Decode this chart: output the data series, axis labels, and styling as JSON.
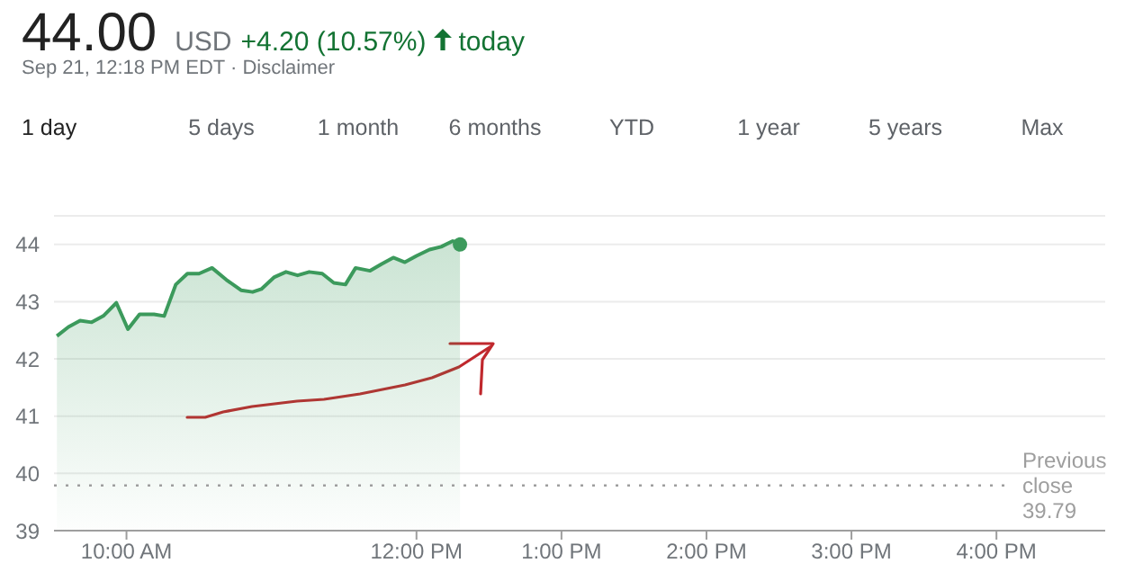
{
  "chart_data": {
    "type": "area",
    "title": "44.00",
    "subtitle": "Sep 21, 12:18 PM EDT · Disclaimer",
    "annotations": [
      "USD",
      "+4.20 (10.57%)",
      "today",
      "1 day",
      "5 days",
      "1 month",
      "6 months",
      "YTD",
      "1 year",
      "5 years",
      "Max"
    ],
    "x": [
      9.52,
      9.6,
      9.68,
      9.76,
      9.84,
      9.93,
      10.01,
      10.09,
      10.19,
      10.26,
      10.34,
      10.42,
      10.5,
      10.59,
      10.69,
      10.79,
      10.87,
      10.93,
      11.02,
      11.1,
      11.18,
      11.26,
      11.35,
      11.43,
      11.51,
      11.58,
      11.68,
      11.76,
      11.84,
      11.92,
      12.0,
      12.09,
      12.17,
      12.25,
      12.3
    ],
    "series": [
      {
        "color": "#3c9a5c",
        "values": [
          42.4,
          42.56,
          42.67,
          42.64,
          42.75,
          42.98,
          42.52,
          42.78,
          42.78,
          42.75,
          43.3,
          43.49,
          43.49,
          43.59,
          43.38,
          43.2,
          43.17,
          43.22,
          43.43,
          43.52,
          43.46,
          43.52,
          43.49,
          43.33,
          43.3,
          43.59,
          43.54,
          43.66,
          43.77,
          43.69,
          43.8,
          43.91,
          43.96,
          44.06,
          44.0
        ]
      }
    ],
    "xlim": [
      9.5,
      16.75
    ],
    "xticks": [
      {
        "value": 10,
        "label": "10:00 AM"
      },
      {
        "value": 12,
        "label": "12:00 PM"
      },
      {
        "value": 13,
        "label": "1:00 PM"
      },
      {
        "value": 14,
        "label": "2:00 PM"
      },
      {
        "value": 15,
        "label": "3:00 PM"
      },
      {
        "value": 16,
        "label": "4:00 PM"
      }
    ],
    "ylim": [
      39,
      44.5
    ],
    "yticks": [
      39,
      40,
      41,
      42,
      43,
      44
    ],
    "ref_lines": [
      {
        "axis": "y",
        "value": 39.79,
        "label": "Previous close 39.79",
        "color": "#9e9e9e",
        "line_style": "dotted"
      }
    ],
    "grid": "y"
  }
}
